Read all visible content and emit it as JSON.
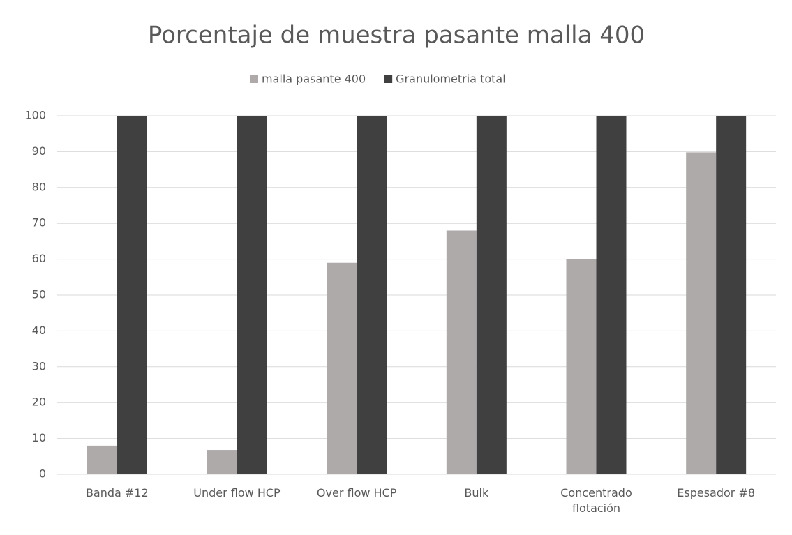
{
  "chart_data": {
    "type": "bar",
    "title": "Porcentaje de muestra pasante malla 400",
    "categories": [
      "Banda #12",
      "Under flow HCP",
      "Over flow HCP",
      "Bulk",
      "Concentrado flotación",
      "Espesador #8"
    ],
    "series": [
      {
        "name": "malla pasante 400",
        "color": "#aeaaaa",
        "values": [
          8,
          6.8,
          59,
          68,
          60,
          89.8
        ]
      },
      {
        "name": "Granulometria total",
        "color": "#404040",
        "values": [
          100,
          100,
          100,
          100,
          100,
          100
        ]
      }
    ],
    "ylim": [
      0,
      100
    ],
    "yticks": [
      0,
      10,
      20,
      30,
      40,
      50,
      60,
      70,
      80,
      90,
      100
    ],
    "grid": true,
    "legend": "top"
  }
}
